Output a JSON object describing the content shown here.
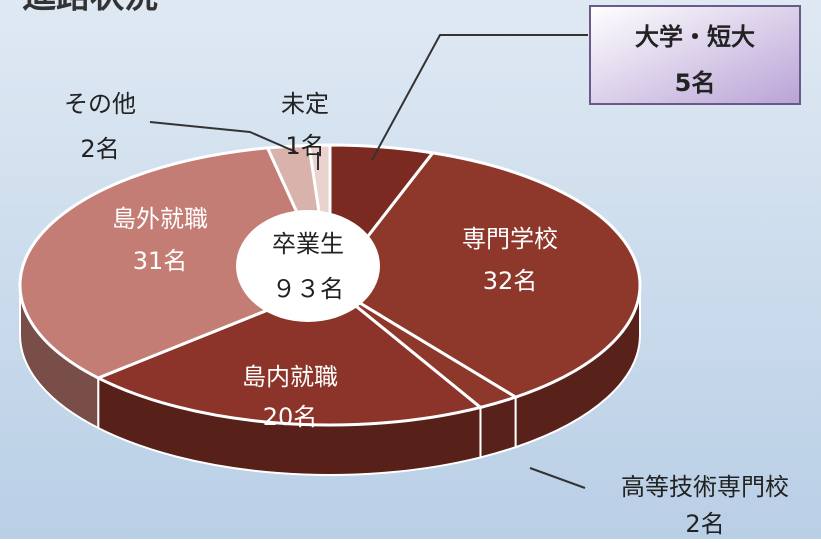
{
  "chart_data": {
    "type": "pie3d",
    "title": "進路状況",
    "center_text": [
      "卒業生",
      "９３名"
    ],
    "categories": [
      "大学・短大",
      "専門学校",
      "高等技術専門校",
      "島内就職",
      "島外就職",
      "その他",
      "未定"
    ],
    "values": [
      5,
      32,
      2,
      20,
      31,
      2,
      1
    ],
    "value_labels": [
      "5名",
      "32名",
      "2名",
      "20名",
      "31名",
      "2名",
      "1名"
    ],
    "colors": [
      "#7b2a22",
      "#8e372b",
      "#8e372b",
      "#8c3429",
      "#c37d74",
      "#d9b2ac",
      "#ead2ce"
    ]
  }
}
